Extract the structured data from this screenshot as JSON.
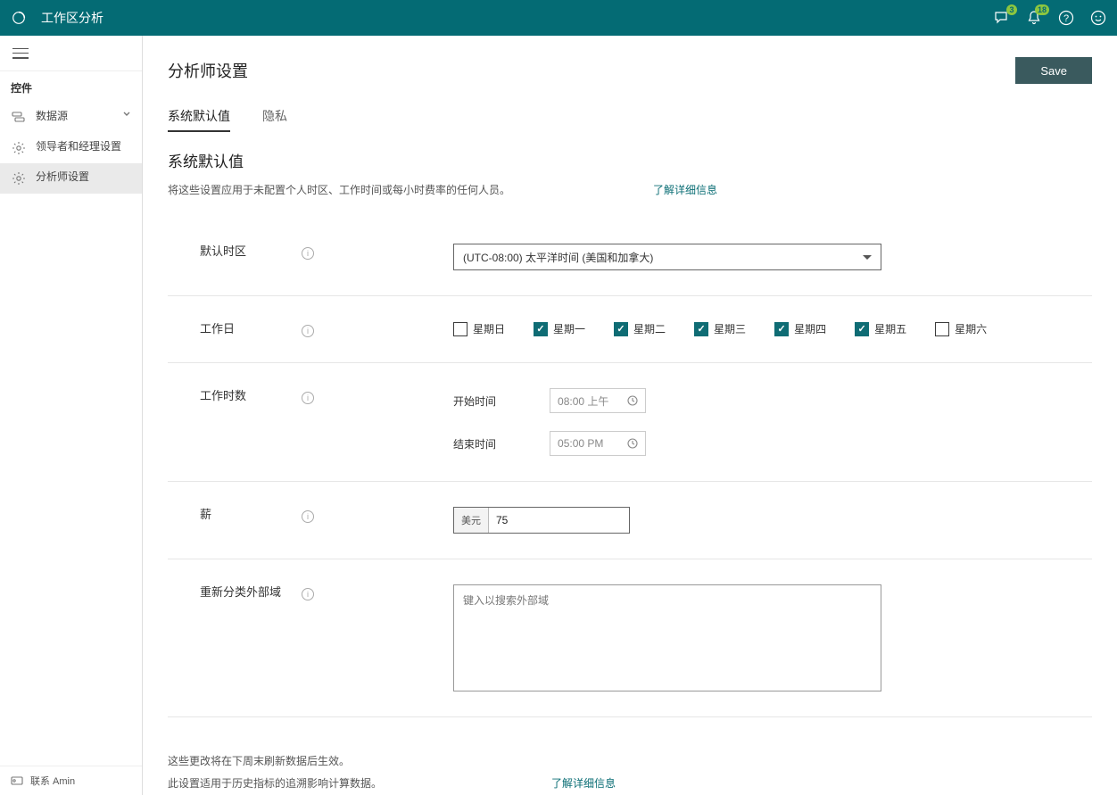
{
  "colors": {
    "brand_bg": "#046b74",
    "accent": "#0f6c74",
    "badge_bg": "#8cc63f",
    "save_btn": "#3a5a5e",
    "border": "#e6e6e6"
  },
  "topbar": {
    "app_title": "工作区分析",
    "chat_badge": "3",
    "bell_badge": "18"
  },
  "sidebar": {
    "section_title": "控件",
    "items": [
      {
        "label": "数据源",
        "icon": "datasource",
        "expandable": true,
        "active": false
      },
      {
        "label": "领导者和经理设置",
        "icon": "gear",
        "expandable": false,
        "active": false
      },
      {
        "label": "分析师设置",
        "icon": "gear",
        "expandable": false,
        "active": true
      }
    ],
    "footer_label": "联系 Amin"
  },
  "page": {
    "title": "分析师设置",
    "save_button": "Save",
    "tabs": [
      {
        "label": "系统默认值",
        "active": true
      },
      {
        "label": "隐私",
        "active": false
      }
    ],
    "section_heading": "系统默认值",
    "section_desc": "将这些设置应用于未配置个人时区、工作时间或每小时费率的任何人员。",
    "learn_more": "了解详细信息"
  },
  "fields": {
    "timezone": {
      "label": "默认时区",
      "value": "(UTC-08:00) 太平洋时间 (美国和加拿大)"
    },
    "working_days": {
      "label": "工作日",
      "days": [
        {
          "label": "星期日",
          "checked": false
        },
        {
          "label": "星期一",
          "checked": true
        },
        {
          "label": "星期二",
          "checked": true
        },
        {
          "label": "星期三",
          "checked": true
        },
        {
          "label": "星期四",
          "checked": true
        },
        {
          "label": "星期五",
          "checked": true
        },
        {
          "label": "星期六",
          "checked": false
        }
      ]
    },
    "working_hours": {
      "label": "工作时数",
      "start_label": "开始时间",
      "start_value": "08:00 上午",
      "end_label": "结束时间",
      "end_value": "05:00 PM"
    },
    "rate": {
      "label": "薪",
      "currency_prefix": "美元",
      "value": "75"
    },
    "reclassify": {
      "label": "重新分类外部域",
      "placeholder": "键入以搜索外部域"
    }
  },
  "footnote": {
    "line1": "这些更改将在下周末刷新数据后生效。",
    "line2": "此设置适用于历史指标的追溯影响计算数据。",
    "link": "了解详细信息"
  }
}
